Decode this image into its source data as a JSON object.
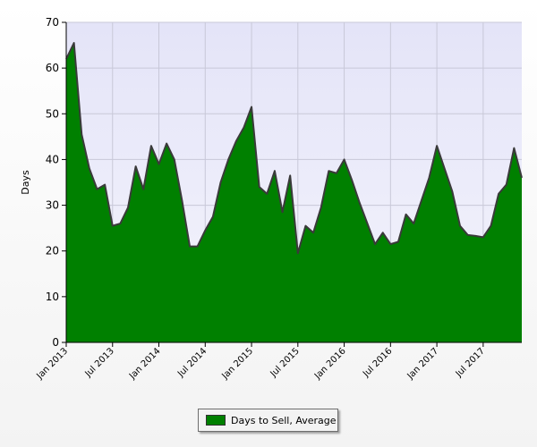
{
  "chart_data": {
    "type": "area",
    "title": "",
    "xlabel": "",
    "ylabel": "Days",
    "ylim": [
      0,
      70
    ],
    "yticks": [
      0,
      10,
      20,
      30,
      40,
      50,
      60,
      70
    ],
    "x_tick_labels": [
      "Jan 2013",
      "Jul 2013",
      "Jan 2014",
      "Jul 2014",
      "Jan 2015",
      "Jul 2015",
      "Jan 2016",
      "Jul 2016",
      "Jan 2017",
      "Jul 2017"
    ],
    "x_start": "2013-01",
    "x_end": "2017-12",
    "grid": true,
    "legend_placement": "bottom-center",
    "colors": {
      "fill": "#008000",
      "line": "#3a3a3a",
      "plot_background": "#ececfb",
      "grid": "#c8c8d8"
    },
    "categories": [
      "2013-01",
      "2013-02",
      "2013-03",
      "2013-04",
      "2013-05",
      "2013-06",
      "2013-07",
      "2013-08",
      "2013-09",
      "2013-10",
      "2013-11",
      "2013-12",
      "2014-01",
      "2014-02",
      "2014-03",
      "2014-04",
      "2014-05",
      "2014-06",
      "2014-07",
      "2014-08",
      "2014-09",
      "2014-10",
      "2014-11",
      "2014-12",
      "2015-01",
      "2015-02",
      "2015-03",
      "2015-04",
      "2015-05",
      "2015-06",
      "2015-07",
      "2015-08",
      "2015-09",
      "2015-10",
      "2015-11",
      "2015-12",
      "2016-01",
      "2016-02",
      "2016-03",
      "2016-04",
      "2016-05",
      "2016-06",
      "2016-07",
      "2016-08",
      "2016-09",
      "2016-10",
      "2016-11",
      "2016-12",
      "2017-01",
      "2017-02",
      "2017-03",
      "2017-04",
      "2017-05",
      "2017-06",
      "2017-07",
      "2017-08",
      "2017-09",
      "2017-10",
      "2017-11",
      "2017-12"
    ],
    "series": [
      {
        "name": "Days to Sell, Average",
        "values": [
          62,
          65.5,
          45.5,
          38,
          33.5,
          34.5,
          25.5,
          26,
          29.5,
          38.5,
          33.5,
          43,
          39,
          43.5,
          40,
          31,
          21,
          21,
          24.5,
          27.5,
          35,
          40,
          44,
          47,
          51.5,
          34,
          32.5,
          37.5,
          28.5,
          36.5,
          19.5,
          25.5,
          24,
          29.5,
          37.5,
          37,
          40,
          35.5,
          30.5,
          26,
          21.5,
          24,
          21.5,
          22,
          28,
          26,
          31,
          36,
          43,
          38,
          33,
          25.5,
          23.5,
          23.3,
          23,
          25.5,
          32.5,
          34.5,
          42.5,
          36
        ]
      }
    ]
  }
}
